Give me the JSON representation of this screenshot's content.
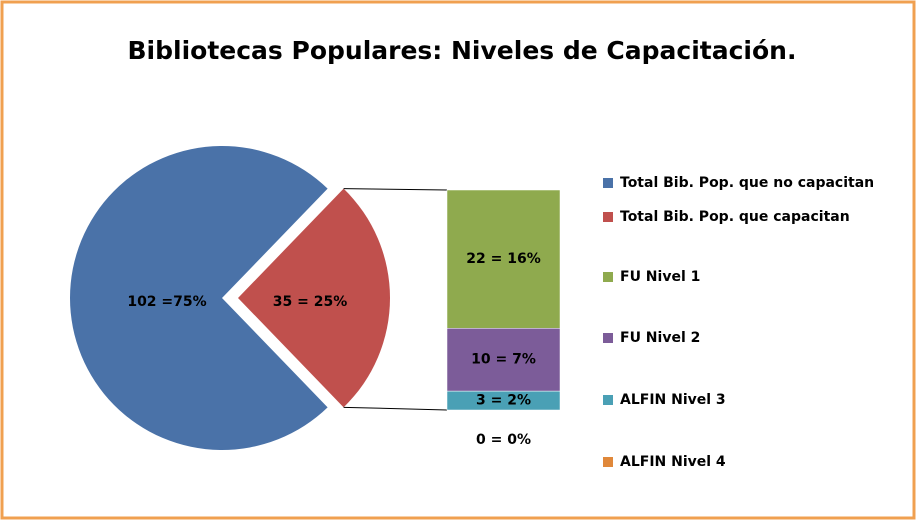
{
  "chart_data": {
    "type": "bar-of-pie",
    "title": "Bibliotecas Populares: Niveles de Capacitación.",
    "categories": [
      "Total Bib. Pop. que no capacitan",
      "Total Bib. Pop. que capacitan",
      "FU Nivel 1",
      "FU Nivel 2",
      "ALFIN Nivel 3",
      "ALFIN Nivel 4"
    ],
    "values": [
      102,
      35,
      22,
      10,
      3,
      0
    ],
    "value_labels": [
      "102 =75%",
      "35 = 25%",
      "22 = 16%",
      "10 = 7%",
      "3 = 2%",
      "0 = 0%"
    ],
    "colors": [
      "#4a72a8",
      "#c0504d",
      "#8faa4e",
      "#7c5c99",
      "#4aa0b5",
      "#e0883a"
    ],
    "legend": "right"
  }
}
